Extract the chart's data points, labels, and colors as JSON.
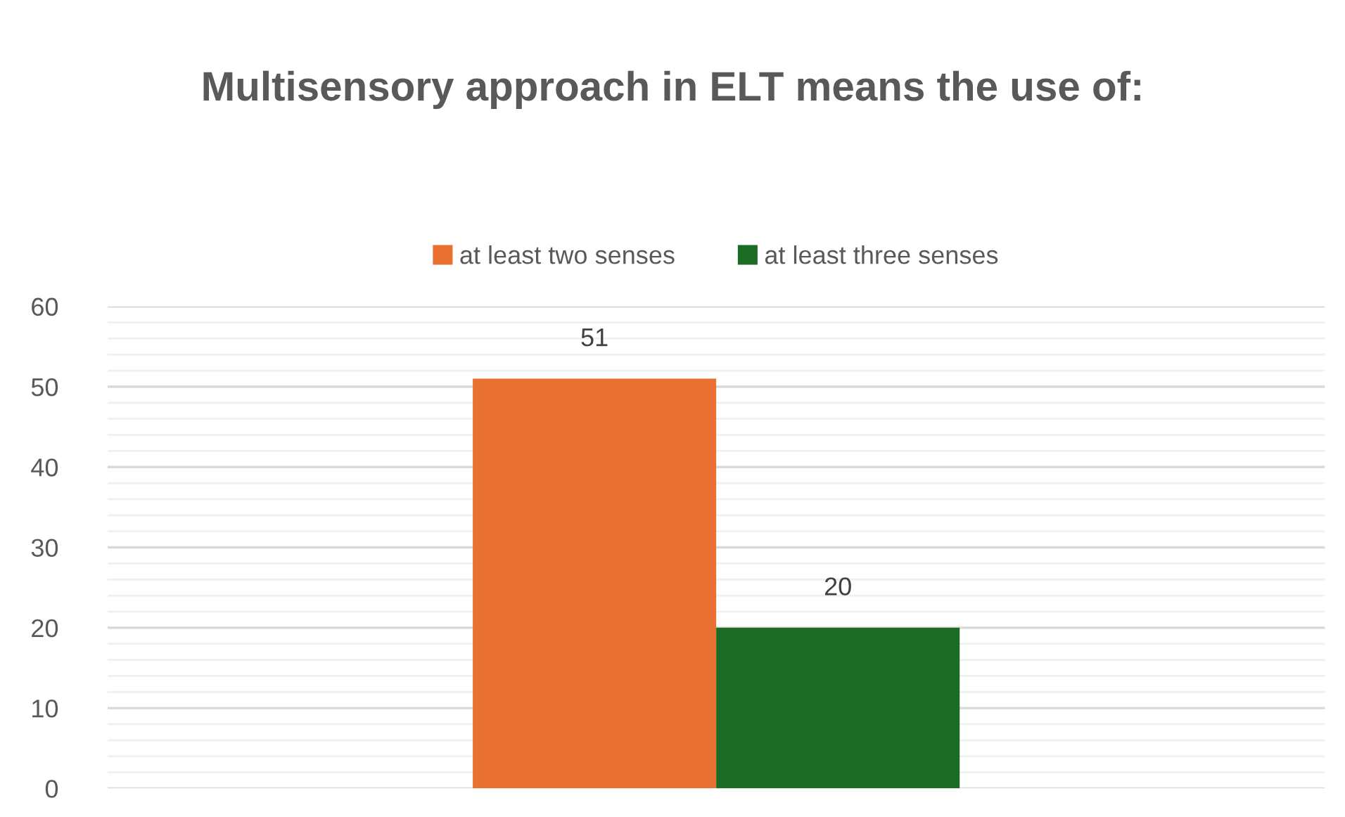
{
  "chart_data": {
    "type": "bar",
    "title": "Multisensory approach in ELT means the use of:",
    "categories": [
      null
    ],
    "series": [
      {
        "name": "at least two senses",
        "color": "#e97132",
        "values": [
          51
        ]
      },
      {
        "name": "at least three senses",
        "color": "#1b6b25",
        "values": [
          20
        ]
      }
    ],
    "ylim": [
      0,
      60
    ],
    "yticks": [
      0,
      10,
      20,
      30,
      40,
      50,
      60
    ],
    "grid": "y",
    "legend": "top",
    "data_labels": true,
    "tick_labels": "y"
  }
}
